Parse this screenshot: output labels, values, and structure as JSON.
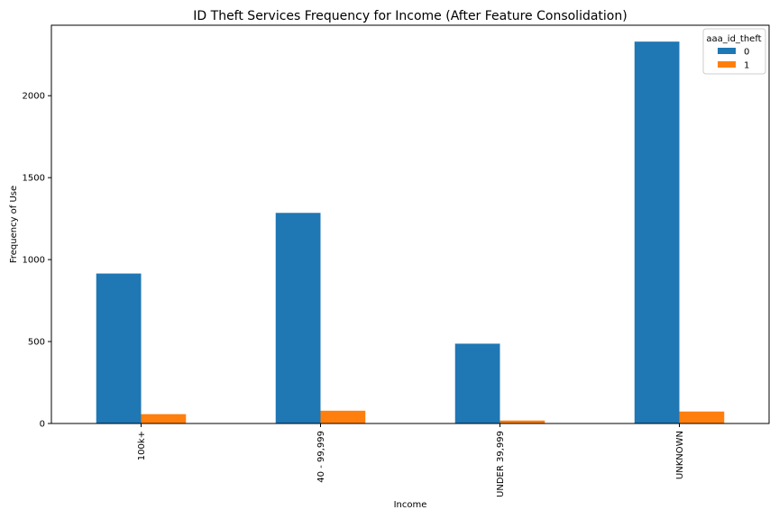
{
  "chart_data": {
    "type": "bar",
    "title": "ID Theft Services Frequency for Income (After Feature Consolidation)",
    "xlabel": "Income",
    "ylabel": "Frequency of Use",
    "categories": [
      "100k+",
      "40 - 99,999",
      "UNDER 39,999",
      "UNKNOWN"
    ],
    "series": [
      {
        "name": "0",
        "color": "#1f77b4",
        "values": [
          915,
          1285,
          487,
          2330
        ]
      },
      {
        "name": "1",
        "color": "#ff7f0e",
        "values": [
          57,
          78,
          18,
          73
        ]
      }
    ],
    "ylim": [
      0,
      2430
    ],
    "yticks": [
      0,
      500,
      1000,
      1500,
      2000
    ],
    "legend": {
      "title": "aaa_id_theft",
      "position": "top-right"
    },
    "grid": false
  }
}
